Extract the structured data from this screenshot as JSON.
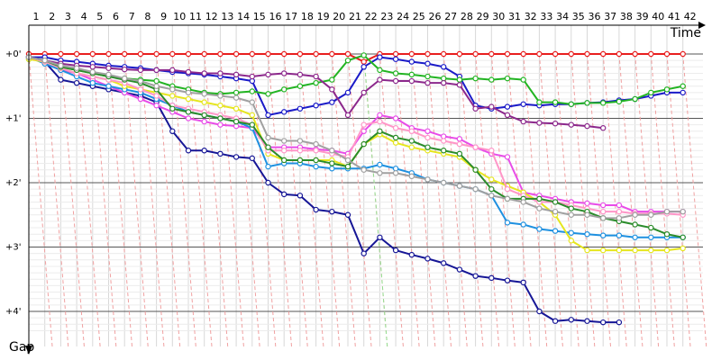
{
  "chart_data": {
    "type": "line",
    "xlabel": "Time",
    "ylabel": "Gap",
    "laps": [
      1,
      2,
      3,
      4,
      5,
      6,
      7,
      8,
      9,
      10,
      11,
      12,
      13,
      14,
      15,
      16,
      17,
      18,
      19,
      20,
      21,
      22,
      23,
      24,
      25,
      26,
      27,
      28,
      29,
      30,
      31,
      32,
      33,
      34,
      35,
      36,
      37,
      38,
      39,
      40,
      41,
      42
    ],
    "y_ticks": [
      {
        "value": 0,
        "label": "+0'"
      },
      {
        "value": 1,
        "label": "+1'"
      },
      {
        "value": 2,
        "label": "+2'"
      },
      {
        "value": 3,
        "label": "+3'"
      },
      {
        "value": 4,
        "label": "+4'"
      }
    ],
    "ylim": [
      -0.3,
      4.4
    ],
    "grid": true,
    "series": [
      {
        "color": "#e81e1e",
        "values": [
          0,
          0,
          0,
          0,
          0,
          0,
          0,
          0,
          0,
          0,
          0,
          0,
          0,
          0,
          0,
          0,
          0,
          0,
          0,
          0,
          0,
          0.12,
          0,
          0,
          0,
          0,
          0,
          0,
          0,
          0,
          0,
          0,
          0,
          0,
          0,
          0,
          0,
          0,
          0,
          0,
          0,
          0
        ]
      },
      {
        "color": "#1a1ac8",
        "values": [
          0.05,
          0.05,
          0.1,
          0.12,
          0.15,
          0.18,
          0.2,
          0.22,
          0.25,
          0.28,
          0.3,
          0.32,
          0.35,
          0.38,
          0.42,
          0.95,
          0.9,
          0.85,
          0.8,
          0.75,
          0.6,
          0.2,
          0.05,
          0.08,
          0.12,
          0.15,
          0.2,
          0.35,
          0.8,
          0.85,
          0.82,
          0.78,
          0.8,
          0.78,
          0.78,
          0.76,
          0.75,
          0.72,
          0.7,
          0.65,
          0.6,
          0.6
        ]
      },
      {
        "color": "#22b422",
        "values": [
          0.08,
          0.1,
          0.2,
          0.25,
          0.3,
          0.35,
          0.38,
          0.4,
          0.42,
          0.5,
          0.55,
          0.6,
          0.62,
          0.6,
          0.58,
          0.62,
          0.55,
          0.5,
          0.45,
          0.4,
          0.1,
          0.02,
          0.25,
          0.3,
          0.32,
          0.35,
          0.38,
          0.4,
          0.38,
          0.4,
          0.38,
          0.4,
          0.75,
          0.75,
          0.78,
          0.76,
          0.76,
          0.74,
          0.7,
          0.6,
          0.55,
          0.5
        ]
      },
      {
        "color": "#8c288c",
        "values": [
          0.05,
          0.1,
          0.15,
          0.18,
          0.2,
          0.22,
          0.24,
          0.25,
          0.25,
          0.25,
          0.28,
          0.3,
          0.3,
          0.32,
          0.35,
          0.32,
          0.3,
          0.32,
          0.35,
          0.55,
          0.95,
          0.6,
          0.4,
          0.42,
          0.42,
          0.45,
          0.45,
          0.48,
          0.85,
          0.82,
          0.95,
          1.05,
          1.07,
          1.08,
          1.1,
          1.12,
          1.15
        ]
      },
      {
        "color": "#161696",
        "values": [
          0.05,
          0.12,
          0.4,
          0.45,
          0.5,
          0.55,
          0.6,
          0.65,
          0.75,
          1.2,
          1.5,
          1.5,
          1.55,
          1.6,
          1.62,
          2.0,
          2.18,
          2.2,
          2.42,
          2.45,
          2.5,
          3.1,
          2.85,
          3.05,
          3.12,
          3.18,
          3.25,
          3.35,
          3.45,
          3.48,
          3.52,
          3.55,
          4.0,
          4.15,
          4.13,
          4.15,
          4.17,
          4.17
        ]
      },
      {
        "color": "#e84ce8",
        "values": [
          0.05,
          0.1,
          0.25,
          0.3,
          0.4,
          0.5,
          0.6,
          0.7,
          0.8,
          0.9,
          1.0,
          1.05,
          1.1,
          1.12,
          1.15,
          1.45,
          1.45,
          1.45,
          1.48,
          1.5,
          1.55,
          1.2,
          0.95,
          1.0,
          1.15,
          1.2,
          1.28,
          1.32,
          1.45,
          1.55,
          1.6,
          2.15,
          2.2,
          2.25,
          2.3,
          2.32,
          2.35,
          2.35,
          2.45,
          2.45,
          2.45,
          2.45
        ]
      },
      {
        "color": "#1e90e0",
        "values": [
          0.05,
          0.15,
          0.25,
          0.35,
          0.45,
          0.5,
          0.55,
          0.6,
          0.7,
          0.8,
          0.9,
          0.95,
          1.0,
          1.05,
          1.15,
          1.75,
          1.7,
          1.7,
          1.75,
          1.78,
          1.78,
          1.78,
          1.72,
          1.78,
          1.85,
          1.95,
          2.0,
          2.05,
          2.1,
          2.2,
          2.62,
          2.65,
          2.72,
          2.75,
          2.78,
          2.8,
          2.82,
          2.82,
          2.85,
          2.85,
          2.85,
          2.85
        ]
      },
      {
        "color": "#e6e61e",
        "values": [
          0.08,
          0.12,
          0.22,
          0.3,
          0.35,
          0.4,
          0.5,
          0.55,
          0.6,
          0.65,
          0.7,
          0.75,
          0.8,
          0.85,
          0.95,
          1.55,
          1.65,
          1.65,
          1.65,
          1.65,
          1.75,
          1.4,
          1.25,
          1.38,
          1.45,
          1.5,
          1.55,
          1.6,
          1.8,
          1.95,
          2.05,
          2.15,
          2.3,
          2.5,
          2.9,
          3.05,
          3.05,
          3.05,
          3.05,
          3.05,
          3.05,
          3.02
        ]
      },
      {
        "color": "#ff96c8",
        "values": [
          0.05,
          0.12,
          0.22,
          0.3,
          0.35,
          0.4,
          0.45,
          0.55,
          0.65,
          0.8,
          0.85,
          0.9,
          0.95,
          1.0,
          1.1,
          1.5,
          1.5,
          1.5,
          1.5,
          1.55,
          1.6,
          1.1,
          1.05,
          1.15,
          1.2,
          1.3,
          1.35,
          1.4,
          1.45,
          1.5,
          2.1,
          2.2,
          2.3,
          2.3,
          2.35,
          2.4,
          2.45,
          2.45,
          2.48,
          2.48,
          2.48,
          2.5
        ]
      },
      {
        "color": "#2a8c2a",
        "values": [
          0.05,
          0.1,
          0.2,
          0.25,
          0.3,
          0.35,
          0.4,
          0.45,
          0.55,
          0.85,
          0.9,
          0.95,
          1.0,
          1.05,
          1.1,
          1.45,
          1.65,
          1.65,
          1.65,
          1.7,
          1.75,
          1.4,
          1.2,
          1.3,
          1.35,
          1.45,
          1.5,
          1.55,
          1.8,
          2.1,
          2.25,
          2.25,
          2.25,
          2.3,
          2.4,
          2.45,
          2.55,
          2.6,
          2.65,
          2.7,
          2.8,
          2.85
        ]
      },
      {
        "color": "#a0a0a0",
        "values": [
          0.05,
          0.1,
          0.18,
          0.22,
          0.28,
          0.32,
          0.38,
          0.42,
          0.5,
          0.55,
          0.6,
          0.62,
          0.65,
          0.68,
          0.75,
          1.3,
          1.35,
          1.35,
          1.4,
          1.5,
          1.65,
          1.8,
          1.85,
          1.85,
          1.9,
          1.95,
          2.0,
          2.05,
          2.1,
          2.2,
          2.25,
          2.3,
          2.4,
          2.45,
          2.5,
          2.5,
          2.55,
          2.55,
          2.5,
          2.5,
          2.45,
          2.45
        ]
      }
    ]
  }
}
